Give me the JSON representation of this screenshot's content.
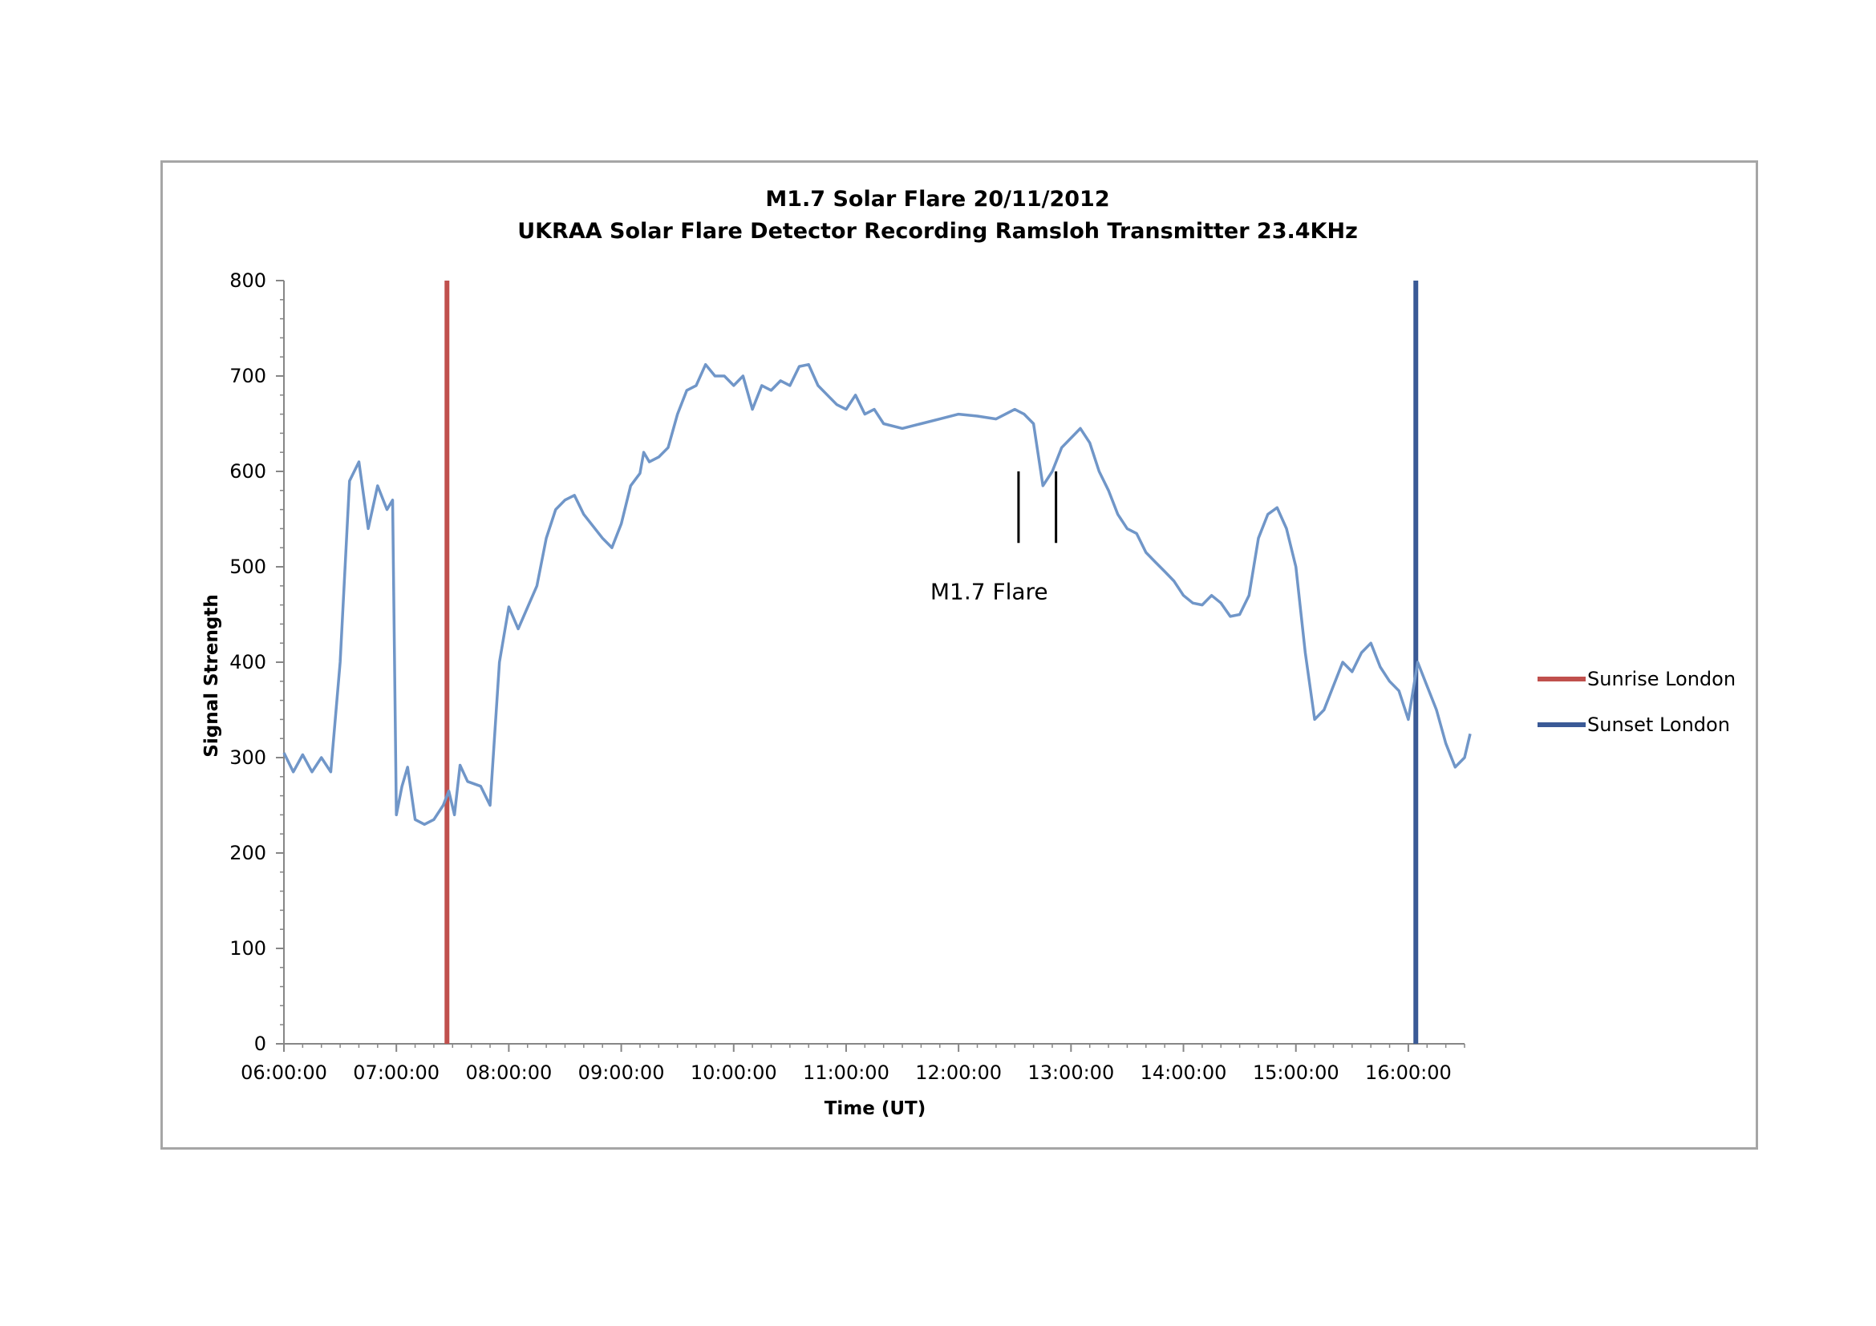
{
  "chart_data": {
    "type": "line",
    "title": "M1.7 Solar Flare 20/11/2012",
    "subtitle": "UKRAA Solar Flare Detector Recording Ramsloh Transmitter 23.4KHz",
    "xlabel": "Time (UT)",
    "ylabel": "Signal Strength",
    "xlim": [
      "06:00:00",
      "16:30:00"
    ],
    "ylim": [
      0,
      800
    ],
    "y_ticks": [
      "0",
      "100",
      "200",
      "300",
      "400",
      "500",
      "600",
      "700",
      "800"
    ],
    "x_ticks": [
      "06:00:00",
      "07:00:00",
      "08:00:00",
      "09:00:00",
      "10:00:00",
      "11:00:00",
      "12:00:00",
      "13:00:00",
      "14:00:00",
      "15:00:00",
      "16:00:00"
    ],
    "grid": false,
    "legend_position": "right",
    "series": [
      {
        "name": "",
        "color": "#7096c8",
        "points": [
          [
            "06:00:00",
            305
          ],
          [
            "06:05:00",
            285
          ],
          [
            "06:10:00",
            303
          ],
          [
            "06:15:00",
            285
          ],
          [
            "06:20:00",
            300
          ],
          [
            "06:25:00",
            285
          ],
          [
            "06:30:00",
            400
          ],
          [
            "06:35:00",
            590
          ],
          [
            "06:40:00",
            610
          ],
          [
            "06:45:00",
            540
          ],
          [
            "06:50:00",
            585
          ],
          [
            "06:55:00",
            560
          ],
          [
            "06:58:00",
            570
          ],
          [
            "07:00:00",
            240
          ],
          [
            "07:03:00",
            270
          ],
          [
            "07:06:00",
            290
          ],
          [
            "07:10:00",
            235
          ],
          [
            "07:15:00",
            230
          ],
          [
            "07:20:00",
            235
          ],
          [
            "07:25:00",
            250
          ],
          [
            "07:28:00",
            265
          ],
          [
            "07:31:00",
            240
          ],
          [
            "07:34:00",
            292
          ],
          [
            "07:38:00",
            275
          ],
          [
            "07:45:00",
            270
          ],
          [
            "07:50:00",
            250
          ],
          [
            "07:55:00",
            400
          ],
          [
            "08:00:00",
            458
          ],
          [
            "08:05:00",
            435
          ],
          [
            "08:15:00",
            480
          ],
          [
            "08:20:00",
            530
          ],
          [
            "08:25:00",
            560
          ],
          [
            "08:30:00",
            570
          ],
          [
            "08:35:00",
            575
          ],
          [
            "08:40:00",
            555
          ],
          [
            "08:50:00",
            530
          ],
          [
            "08:55:00",
            520
          ],
          [
            "09:00:00",
            545
          ],
          [
            "09:05:00",
            585
          ],
          [
            "09:10:00",
            598
          ],
          [
            "09:12:00",
            620
          ],
          [
            "09:15:00",
            610
          ],
          [
            "09:20:00",
            615
          ],
          [
            "09:25:00",
            625
          ],
          [
            "09:30:00",
            660
          ],
          [
            "09:35:00",
            685
          ],
          [
            "09:40:00",
            690
          ],
          [
            "09:45:00",
            712
          ],
          [
            "09:50:00",
            700
          ],
          [
            "09:55:00",
            700
          ],
          [
            "10:00:00",
            690
          ],
          [
            "10:05:00",
            700
          ],
          [
            "10:10:00",
            665
          ],
          [
            "10:15:00",
            690
          ],
          [
            "10:20:00",
            685
          ],
          [
            "10:25:00",
            695
          ],
          [
            "10:30:00",
            690
          ],
          [
            "10:35:00",
            710
          ],
          [
            "10:40:00",
            712
          ],
          [
            "10:45:00",
            690
          ],
          [
            "10:50:00",
            680
          ],
          [
            "10:55:00",
            670
          ],
          [
            "11:00:00",
            665
          ],
          [
            "11:05:00",
            680
          ],
          [
            "11:10:00",
            660
          ],
          [
            "11:15:00",
            665
          ],
          [
            "11:20:00",
            650
          ],
          [
            "11:30:00",
            645
          ],
          [
            "11:40:00",
            650
          ],
          [
            "11:50:00",
            655
          ],
          [
            "12:00:00",
            660
          ],
          [
            "12:10:00",
            658
          ],
          [
            "12:20:00",
            655
          ],
          [
            "12:30:00",
            665
          ],
          [
            "12:35:00",
            660
          ],
          [
            "12:40:00",
            650
          ],
          [
            "12:45:00",
            585
          ],
          [
            "12:50:00",
            600
          ],
          [
            "12:55:00",
            625
          ],
          [
            "13:00:00",
            635
          ],
          [
            "13:05:00",
            645
          ],
          [
            "13:10:00",
            630
          ],
          [
            "13:15:00",
            600
          ],
          [
            "13:20:00",
            580
          ],
          [
            "13:25:00",
            555
          ],
          [
            "13:30:00",
            540
          ],
          [
            "13:35:00",
            535
          ],
          [
            "13:40:00",
            515
          ],
          [
            "13:45:00",
            505
          ],
          [
            "13:50:00",
            495
          ],
          [
            "13:55:00",
            485
          ],
          [
            "14:00:00",
            470
          ],
          [
            "14:05:00",
            462
          ],
          [
            "14:10:00",
            460
          ],
          [
            "14:15:00",
            470
          ],
          [
            "14:20:00",
            462
          ],
          [
            "14:25:00",
            448
          ],
          [
            "14:30:00",
            450
          ],
          [
            "14:35:00",
            470
          ],
          [
            "14:40:00",
            530
          ],
          [
            "14:45:00",
            555
          ],
          [
            "14:50:00",
            562
          ],
          [
            "14:55:00",
            540
          ],
          [
            "15:00:00",
            500
          ],
          [
            "15:05:00",
            410
          ],
          [
            "15:10:00",
            340
          ],
          [
            "15:15:00",
            350
          ],
          [
            "15:20:00",
            375
          ],
          [
            "15:25:00",
            400
          ],
          [
            "15:30:00",
            390
          ],
          [
            "15:35:00",
            410
          ],
          [
            "15:40:00",
            420
          ],
          [
            "15:45:00",
            395
          ],
          [
            "15:50:00",
            380
          ],
          [
            "15:55:00",
            370
          ],
          [
            "16:00:00",
            340
          ],
          [
            "16:05:00",
            400
          ],
          [
            "16:10:00",
            375
          ],
          [
            "16:15:00",
            350
          ],
          [
            "16:20:00",
            315
          ],
          [
            "16:25:00",
            290
          ],
          [
            "16:30:00",
            300
          ],
          [
            "16:33:00",
            325
          ]
        ]
      },
      {
        "name": "Sunrise London",
        "color": "#c0504d",
        "x": "07:27:00"
      },
      {
        "name": "Sunset London",
        "color": "#3a5a96",
        "x": "16:04:00"
      }
    ],
    "annotations": [
      {
        "text": "M1.7 Flare",
        "markers": [
          "12:32:00",
          "12:52:00"
        ],
        "marker_range": [
          525,
          600
        ]
      }
    ]
  }
}
